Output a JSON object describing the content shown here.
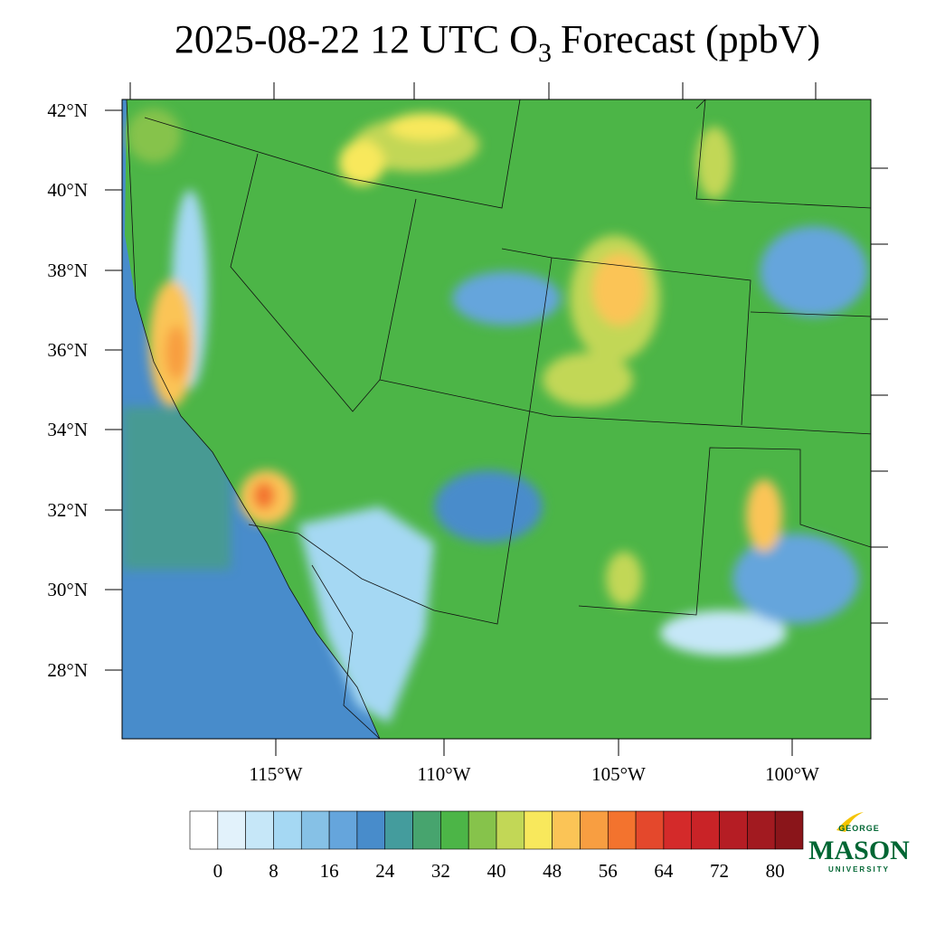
{
  "title": {
    "main": "2025-08-22 12 UTC O",
    "subscript": "3",
    "rest": "Forecast (ppbV)"
  },
  "map": {
    "lat_labels": [
      "42°N",
      "40°N",
      "38°N",
      "36°N",
      "34°N",
      "32°N",
      "30°N",
      "28°N"
    ],
    "lon_labels": [
      "115°W",
      "110°W",
      "105°W",
      "100°W"
    ]
  },
  "colorbar": {
    "colors": [
      "#ffffff",
      "#e2f2fb",
      "#c6e7f8",
      "#a5d8f3",
      "#86c1e6",
      "#65a5dc",
      "#488ccb",
      "#449c9d",
      "#47a46e",
      "#4cb547",
      "#86c34b",
      "#c2d756",
      "#f8e85c",
      "#fbc456",
      "#f89e41",
      "#f3732e",
      "#e4482c",
      "#d42a2a",
      "#c92327",
      "#b51d24",
      "#a21a20",
      "#8a151a"
    ],
    "ticks": [
      0,
      8,
      16,
      24,
      32,
      40,
      48,
      56,
      64,
      72,
      80
    ]
  },
  "logo": {
    "top": "GEORGE",
    "main": "MASON",
    "bottom": "UNIVERSITY"
  }
}
